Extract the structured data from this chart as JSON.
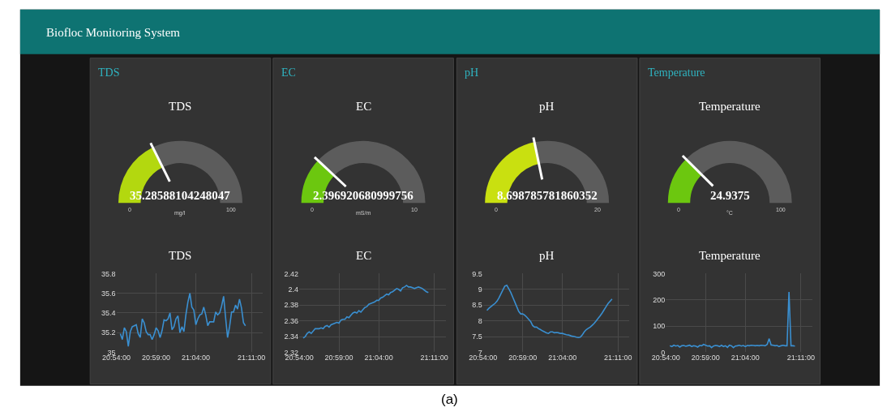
{
  "chart_data": [
    {
      "type": "donut",
      "title": "TDS",
      "subtitle": "TDS",
      "annotations": [
        "Biofloc Monitoring System",
        "35.28588104248047",
        "0",
        "100"
      ],
      "categories": [
        null,
        null
      ],
      "values": [
        35.28588104248047,
        64.71411895751953
      ],
      "xlabel": "mg/l",
      "colors": [
        "#b3d80f",
        "#5c5c5c"
      ]
    },
    {
      "type": "donut",
      "title": "EC",
      "subtitle": "EC",
      "annotations": [
        "2.396920680999756",
        "0",
        "10"
      ],
      "categories": [
        null,
        null
      ],
      "values": [
        23.96920680999756,
        76.03079319000244
      ],
      "xlabel": "mS/m",
      "colors": [
        "#6cc70f",
        "#5c5c5c"
      ]
    },
    {
      "type": "donut",
      "title": "pH",
      "subtitle": "pH",
      "annotations": [
        "8.698785781860352",
        "0",
        "20"
      ],
      "categories": [
        null,
        null
      ],
      "values": [
        43.49392890930176,
        56.50607109069824
      ],
      "colors": [
        "#c9e010",
        "#5c5c5c"
      ]
    },
    {
      "type": "donut",
      "title": "Temperature",
      "subtitle": "Temperature",
      "annotations": [
        "24.9375",
        "0",
        "100"
      ],
      "categories": [
        null,
        null
      ],
      "values": [
        24.9375,
        75.0625
      ],
      "xlabel": "°C",
      "colors": [
        "#6cc70f",
        "#5c5c5c"
      ]
    },
    {
      "type": "line",
      "title": "TDS",
      "color": "#3a8fd0",
      "grid": true,
      "xlim": [
        20.9,
        21.207
      ],
      "xticks": [
        {
          "value": 20.9,
          "label": "20:54:00"
        },
        {
          "value": 20.9833,
          "label": "20:59:00"
        },
        {
          "value": 21.0667,
          "label": "21:04:00"
        },
        {
          "value": 21.1833,
          "label": "21:11:00"
        }
      ],
      "ylim": [
        35,
        35.8
      ],
      "yticks": [
        35,
        35.2,
        35.4,
        35.6,
        35.8
      ],
      "x": [
        20.9083,
        20.9125,
        20.9167,
        20.9208,
        20.925,
        20.9292,
        20.9333,
        20.9375,
        20.9417,
        20.9458,
        20.95,
        20.9542,
        20.9583,
        20.9625,
        20.9667,
        20.9708,
        20.975,
        20.9792,
        20.9833,
        20.9875,
        20.9917,
        20.9958,
        21.0,
        21.0042,
        21.0083,
        21.0125,
        21.0167,
        21.0208,
        21.025,
        21.0292,
        21.0333,
        21.0375,
        21.0417,
        21.0458,
        21.05,
        21.0542,
        21.0583,
        21.0625,
        21.0667,
        21.0708,
        21.075,
        21.0792,
        21.0833,
        21.0875,
        21.0917,
        21.0958,
        21.1,
        21.1042,
        21.1083,
        21.1125,
        21.1167,
        21.1208,
        21.125,
        21.1292,
        21.1333,
        21.1375,
        21.1417,
        21.1458,
        21.15,
        21.1542,
        21.1583,
        21.1625,
        21.1667,
        21.1708
      ],
      "values": [
        35.19,
        35.13,
        35.25,
        35.21,
        35.06,
        35.21,
        35.26,
        35.27,
        35.28,
        35.19,
        35.15,
        35.34,
        35.3,
        35.21,
        35.18,
        35.18,
        35.13,
        35.18,
        35.25,
        35.22,
        35.15,
        35.22,
        35.33,
        35.32,
        35.34,
        35.4,
        35.23,
        35.26,
        35.34,
        35.37,
        35.2,
        35.26,
        35.21,
        35.38,
        35.51,
        35.6,
        35.46,
        35.43,
        35.28,
        35.34,
        35.38,
        35.39,
        35.46,
        35.38,
        35.27,
        35.31,
        35.31,
        35.31,
        35.41,
        35.38,
        35.4,
        35.47,
        35.57,
        35.35,
        35.15,
        35.26,
        35.41,
        35.41,
        35.48,
        35.44,
        35.54,
        35.45,
        35.3,
        35.27
      ]
    },
    {
      "type": "line",
      "title": "EC",
      "color": "#3a8fd0",
      "grid": true,
      "xlim": [
        20.9,
        21.207
      ],
      "xticks": [
        {
          "value": 20.9,
          "label": "20:54:00"
        },
        {
          "value": 20.9833,
          "label": "20:59:00"
        },
        {
          "value": 21.0667,
          "label": "21:04:00"
        },
        {
          "value": 21.1833,
          "label": "21:11:00"
        }
      ],
      "ylim": [
        2.32,
        2.42
      ],
      "yticks": [
        2.32,
        2.34,
        2.36,
        2.38,
        2.4,
        2.42
      ],
      "x": [
        20.9083,
        20.9125,
        20.9167,
        20.9208,
        20.925,
        20.9292,
        20.9333,
        20.9375,
        20.9417,
        20.9458,
        20.95,
        20.9542,
        20.9583,
        20.9625,
        20.9667,
        20.9708,
        20.975,
        20.9792,
        20.9833,
        20.9875,
        20.9917,
        20.9958,
        21.0,
        21.0042,
        21.0083,
        21.0125,
        21.0167,
        21.0208,
        21.025,
        21.0292,
        21.0333,
        21.0375,
        21.0417,
        21.0458,
        21.05,
        21.0542,
        21.0583,
        21.0625,
        21.0667,
        21.0708,
        21.075,
        21.0792,
        21.0833,
        21.0875,
        21.0917,
        21.0958,
        21.1,
        21.1042,
        21.1083,
        21.1125,
        21.1167,
        21.1208,
        21.125,
        21.1292,
        21.1333,
        21.1375,
        21.1417,
        21.1458,
        21.15,
        21.1542,
        21.1583,
        21.1625,
        21.1667,
        21.1708
      ],
      "values": [
        2.338,
        2.34,
        2.344,
        2.346,
        2.344,
        2.347,
        2.35,
        2.35,
        2.35,
        2.351,
        2.35,
        2.353,
        2.354,
        2.352,
        2.355,
        2.356,
        2.357,
        2.358,
        2.357,
        2.361,
        2.362,
        2.362,
        2.365,
        2.364,
        2.367,
        2.37,
        2.371,
        2.37,
        2.373,
        2.371,
        2.374,
        2.377,
        2.378,
        2.381,
        2.382,
        2.383,
        2.384,
        2.386,
        2.386,
        2.389,
        2.39,
        2.392,
        2.394,
        2.393,
        2.396,
        2.397,
        2.399,
        2.401,
        2.4,
        2.398,
        2.402,
        2.403,
        2.405,
        2.403,
        2.403,
        2.402,
        2.401,
        2.402,
        2.403,
        2.402,
        2.401,
        2.399,
        2.397,
        2.396
      ]
    },
    {
      "type": "line",
      "title": "pH",
      "color": "#3a8fd0",
      "grid": true,
      "xlim": [
        20.9,
        21.207
      ],
      "xticks": [
        {
          "value": 20.9,
          "label": "20:54:00"
        },
        {
          "value": 20.9833,
          "label": "20:59:00"
        },
        {
          "value": 21.0667,
          "label": "21:04:00"
        },
        {
          "value": 21.1833,
          "label": "21:11:00"
        }
      ],
      "ylim": [
        7,
        9.5
      ],
      "yticks": [
        7,
        7.5,
        8,
        8.5,
        9,
        9.5
      ],
      "x": [
        20.9083,
        20.9125,
        20.9167,
        20.9208,
        20.925,
        20.9292,
        20.9333,
        20.9375,
        20.9417,
        20.9458,
        20.95,
        20.9542,
        20.9583,
        20.9625,
        20.9667,
        20.9708,
        20.975,
        20.9792,
        20.9833,
        20.9875,
        20.9917,
        20.9958,
        21.0,
        21.0042,
        21.0083,
        21.0125,
        21.0167,
        21.0208,
        21.025,
        21.0292,
        21.0333,
        21.0375,
        21.0417,
        21.0458,
        21.05,
        21.0542,
        21.0583,
        21.0625,
        21.0667,
        21.0708,
        21.075,
        21.0792,
        21.0833,
        21.0875,
        21.0917,
        21.0958,
        21.1,
        21.1042,
        21.1083,
        21.1125,
        21.1167,
        21.1208,
        21.125,
        21.1292,
        21.1333,
        21.1375,
        21.1417,
        21.1458,
        21.15,
        21.1542,
        21.1583,
        21.1625,
        21.1667,
        21.1708
      ],
      "values": [
        8.33,
        8.4,
        8.45,
        8.5,
        8.55,
        8.62,
        8.72,
        8.85,
        8.98,
        9.1,
        9.13,
        9.02,
        8.9,
        8.75,
        8.6,
        8.45,
        8.3,
        8.22,
        8.22,
        8.18,
        8.12,
        8.05,
        7.98,
        7.85,
        7.8,
        7.8,
        7.75,
        7.72,
        7.68,
        7.65,
        7.62,
        7.6,
        7.65,
        7.65,
        7.62,
        7.63,
        7.62,
        7.6,
        7.6,
        7.58,
        7.56,
        7.55,
        7.53,
        7.51,
        7.5,
        7.48,
        7.47,
        7.48,
        7.55,
        7.65,
        7.72,
        7.76,
        7.8,
        7.86,
        7.92,
        8.0,
        8.08,
        8.16,
        8.25,
        8.35,
        8.45,
        8.55,
        8.62,
        8.69
      ]
    },
    {
      "type": "line",
      "title": "Temperature",
      "annotations": [
        "(a)"
      ],
      "color": "#3a8fd0",
      "grid": true,
      "xlim": [
        20.9,
        21.207
      ],
      "xticks": [
        {
          "value": 20.9,
          "label": "20:54:00"
        },
        {
          "value": 20.9833,
          "label": "20:59:00"
        },
        {
          "value": 21.0667,
          "label": "21:04:00"
        },
        {
          "value": 21.1833,
          "label": "21:11:00"
        }
      ],
      "ylim": [
        0,
        300
      ],
      "yticks": [
        0,
        100,
        200,
        300
      ],
      "x": [
        20.9083,
        20.9125,
        20.9167,
        20.9208,
        20.925,
        20.9292,
        20.9333,
        20.9375,
        20.9417,
        20.9458,
        20.95,
        20.9542,
        20.9583,
        20.9625,
        20.9667,
        20.9708,
        20.975,
        20.9792,
        20.9833,
        20.9875,
        20.9917,
        20.9958,
        21.0,
        21.0042,
        21.0083,
        21.0125,
        21.0167,
        21.0208,
        21.025,
        21.0292,
        21.0333,
        21.0375,
        21.0417,
        21.0458,
        21.05,
        21.0542,
        21.0583,
        21.0625,
        21.0667,
        21.0708,
        21.075,
        21.0792,
        21.0833,
        21.0875,
        21.0917,
        21.0958,
        21.1,
        21.1042,
        21.1083,
        21.1125,
        21.1167,
        21.1208,
        21.125,
        21.1292,
        21.1333,
        21.1375,
        21.1417,
        21.1458,
        21.15,
        21.1542,
        21.1583,
        21.1625,
        21.1667,
        21.1708
      ],
      "values": [
        25,
        22,
        27,
        24,
        26,
        20,
        25,
        26,
        23,
        25,
        27,
        22,
        25,
        24,
        20,
        26,
        25,
        30,
        27,
        24,
        25,
        18,
        24,
        26,
        25,
        22,
        27,
        22,
        25,
        19,
        27,
        25,
        18,
        24,
        25,
        27,
        24,
        26,
        22,
        26,
        25,
        27,
        26,
        25,
        26,
        25,
        27,
        26,
        25,
        30,
        52,
        28,
        27,
        25,
        26,
        22,
        25,
        27,
        25,
        25,
        230,
        25,
        25,
        24
      ]
    }
  ]
}
